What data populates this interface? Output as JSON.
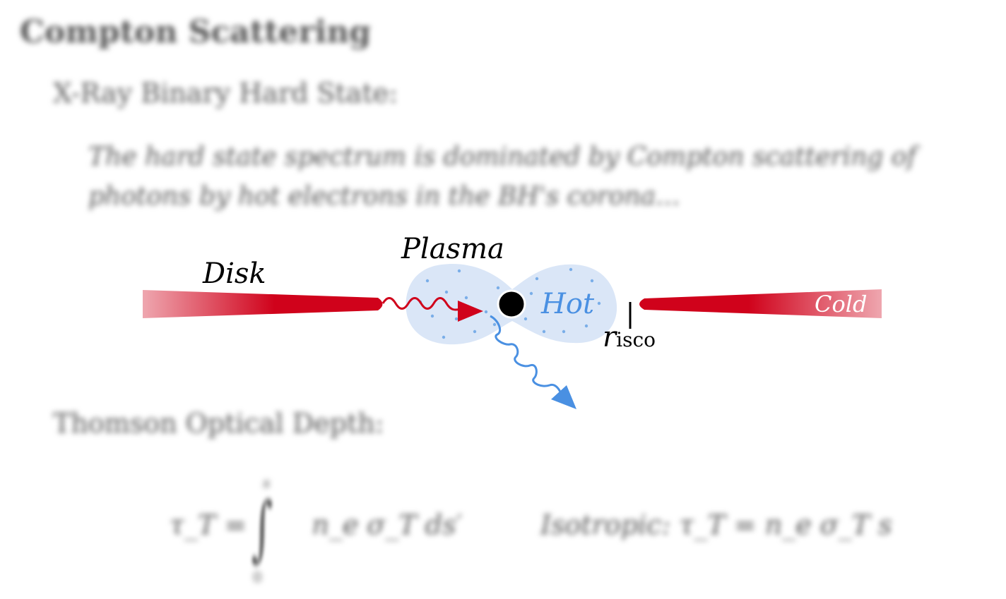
{
  "slide": {
    "title": "Compton Scattering",
    "section1": "X-Ray Binary Hard State:",
    "paragraph": "The hard state spectrum is dominated by Compton scattering of photons by hot electrons in the BH's corona...",
    "section2": "Thomson Optical Depth:",
    "equation_lhs": "τ_T = ",
    "equation_integral": "∫",
    "equation_upper": "s",
    "equation_lower": "0",
    "equation_integrand": "n_e σ_T ds′",
    "equation_isotropic": "Isotropic: τ_T = n_e σ_T s"
  },
  "diagram": {
    "labels": {
      "disk": "Disk",
      "plasma": "Plasma",
      "hot": "Hot",
      "cold": "Cold",
      "risco_main": "r",
      "risco_sub": "isco"
    },
    "colors": {
      "disk_red": "#d0021b",
      "plasma_fill": "#dae6f7",
      "plasma_dots": "#7aaee8",
      "photon_red": "#d0021b",
      "photon_blue": "#4a90e2",
      "black_hole": "#000000"
    }
  }
}
